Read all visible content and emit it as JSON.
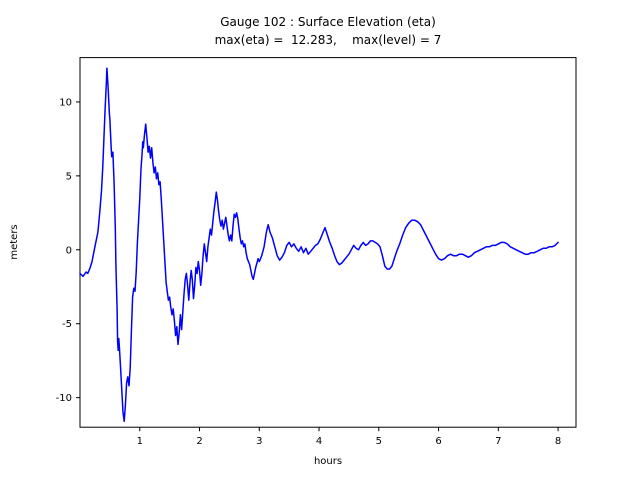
{
  "chart_data": {
    "type": "line",
    "title": "Gauge 102 : Surface Elevation (eta)",
    "subtitle": "max(eta) =  12.283,    max(level) = 7",
    "xlabel": "hours",
    "ylabel": "meters",
    "max_eta": 12.283,
    "max_level": 7,
    "xlim": [
      0,
      8.3
    ],
    "ylim": [
      -12,
      13
    ],
    "xticks": [
      1,
      2,
      3,
      4,
      5,
      6,
      7,
      8
    ],
    "yticks": [
      -10,
      -5,
      0,
      5,
      10
    ],
    "line_color": "#0000ff",
    "axis_color": "#000000",
    "legend": "none",
    "grid": false,
    "series_name": "eta",
    "points": [
      [
        0,
        -1.6
      ],
      [
        0.05,
        -1.8
      ],
      [
        0.1,
        -1.5
      ],
      [
        0.13,
        -1.6
      ],
      [
        0.17,
        -1.2
      ],
      [
        0.2,
        -0.8
      ],
      [
        0.25,
        0.2
      ],
      [
        0.3,
        1.2
      ],
      [
        0.33,
        2.5
      ],
      [
        0.36,
        4
      ],
      [
        0.38,
        5.5
      ],
      [
        0.4,
        7.5
      ],
      [
        0.42,
        9.5
      ],
      [
        0.44,
        11.2
      ],
      [
        0.45,
        12.283
      ],
      [
        0.47,
        11
      ],
      [
        0.49,
        9.3
      ],
      [
        0.5,
        8.8
      ],
      [
        0.52,
        7
      ],
      [
        0.53,
        6.3
      ],
      [
        0.55,
        6.6
      ],
      [
        0.57,
        4.5
      ],
      [
        0.59,
        1.5
      ],
      [
        0.6,
        -1
      ],
      [
        0.62,
        -4
      ],
      [
        0.63,
        -6.2
      ],
      [
        0.64,
        -6.8
      ],
      [
        0.65,
        -6
      ],
      [
        0.66,
        -6.6
      ],
      [
        0.68,
        -8
      ],
      [
        0.7,
        -9.5
      ],
      [
        0.72,
        -11
      ],
      [
        0.74,
        -11.6
      ],
      [
        0.76,
        -10.5
      ],
      [
        0.78,
        -9
      ],
      [
        0.8,
        -8.6
      ],
      [
        0.82,
        -9.2
      ],
      [
        0.84,
        -8
      ],
      [
        0.86,
        -5.5
      ],
      [
        0.88,
        -3.2
      ],
      [
        0.9,
        -2.6
      ],
      [
        0.92,
        -2.8
      ],
      [
        0.94,
        -1.5
      ],
      [
        0.96,
        0.5
      ],
      [
        0.98,
        2
      ],
      [
        1,
        3.5
      ],
      [
        1.02,
        5.5
      ],
      [
        1.04,
        6.5
      ],
      [
        1.05,
        7.3
      ],
      [
        1.06,
        6.9
      ],
      [
        1.08,
        7.8
      ],
      [
        1.1,
        8.5
      ],
      [
        1.12,
        7.6
      ],
      [
        1.14,
        6.6
      ],
      [
        1.16,
        7
      ],
      [
        1.18,
        6.2
      ],
      [
        1.2,
        6.9
      ],
      [
        1.22,
        5.9
      ],
      [
        1.24,
        5.2
      ],
      [
        1.26,
        5.6
      ],
      [
        1.28,
        4.8
      ],
      [
        1.3,
        5.2
      ],
      [
        1.32,
        4.4
      ],
      [
        1.34,
        4.6
      ],
      [
        1.36,
        3.4
      ],
      [
        1.38,
        2
      ],
      [
        1.4,
        0.6
      ],
      [
        1.42,
        -0.8
      ],
      [
        1.44,
        -2.2
      ],
      [
        1.46,
        -2.8
      ],
      [
        1.48,
        -3.4
      ],
      [
        1.5,
        -3.2
      ],
      [
        1.52,
        -3.9
      ],
      [
        1.54,
        -4.4
      ],
      [
        1.56,
        -4
      ],
      [
        1.58,
        -4.8
      ],
      [
        1.6,
        -5.8
      ],
      [
        1.62,
        -5.2
      ],
      [
        1.64,
        -6.4
      ],
      [
        1.66,
        -5.6
      ],
      [
        1.68,
        -4.4
      ],
      [
        1.7,
        -5.4
      ],
      [
        1.72,
        -4.2
      ],
      [
        1.74,
        -3
      ],
      [
        1.76,
        -2
      ],
      [
        1.78,
        -1.6
      ],
      [
        1.8,
        -2.4
      ],
      [
        1.82,
        -3.4
      ],
      [
        1.84,
        -2.2
      ],
      [
        1.86,
        -1.4
      ],
      [
        1.88,
        -2
      ],
      [
        1.9,
        -3.3
      ],
      [
        1.92,
        -2.4
      ],
      [
        1.94,
        -1.2
      ],
      [
        1.96,
        -1.6
      ],
      [
        1.98,
        -0.8
      ],
      [
        2,
        -1.4
      ],
      [
        2.02,
        -2.4
      ],
      [
        2.04,
        -1.6
      ],
      [
        2.06,
        -0.4
      ],
      [
        2.08,
        0.4
      ],
      [
        2.1,
        -0.2
      ],
      [
        2.12,
        -0.8
      ],
      [
        2.14,
        0.2
      ],
      [
        2.16,
        0.8
      ],
      [
        2.18,
        1.4
      ],
      [
        2.2,
        1
      ],
      [
        2.22,
        1.8
      ],
      [
        2.24,
        2.6
      ],
      [
        2.26,
        3.2
      ],
      [
        2.28,
        3.9
      ],
      [
        2.3,
        3.4
      ],
      [
        2.32,
        2.6
      ],
      [
        2.34,
        2
      ],
      [
        2.36,
        1.6
      ],
      [
        2.38,
        2
      ],
      [
        2.4,
        1.4
      ],
      [
        2.42,
        1.8
      ],
      [
        2.44,
        2.2
      ],
      [
        2.46,
        1.6
      ],
      [
        2.48,
        1
      ],
      [
        2.5,
        0.6
      ],
      [
        2.52,
        1
      ],
      [
        2.54,
        0.6
      ],
      [
        2.56,
        1.6
      ],
      [
        2.58,
        2.4
      ],
      [
        2.6,
        2.2
      ],
      [
        2.62,
        2.5
      ],
      [
        2.64,
        2.1
      ],
      [
        2.66,
        1.4
      ],
      [
        2.68,
        0.8
      ],
      [
        2.7,
        0.4
      ],
      [
        2.72,
        0.6
      ],
      [
        2.74,
        0.2
      ],
      [
        2.76,
        0.4
      ],
      [
        2.78,
        -0.2
      ],
      [
        2.8,
        -0.6
      ],
      [
        2.84,
        -1
      ],
      [
        2.88,
        -1.8
      ],
      [
        2.9,
        -2
      ],
      [
        2.94,
        -1.2
      ],
      [
        2.98,
        -0.6
      ],
      [
        3,
        -0.8
      ],
      [
        3.04,
        -0.4
      ],
      [
        3.08,
        0.2
      ],
      [
        3.12,
        1.2
      ],
      [
        3.15,
        1.7
      ],
      [
        3.18,
        1.2
      ],
      [
        3.22,
        0.8
      ],
      [
        3.26,
        0.2
      ],
      [
        3.3,
        -0.4
      ],
      [
        3.34,
        -0.7
      ],
      [
        3.38,
        -0.5
      ],
      [
        3.42,
        -0.2
      ],
      [
        3.46,
        0.3
      ],
      [
        3.5,
        0.5
      ],
      [
        3.54,
        0.2
      ],
      [
        3.58,
        0.4
      ],
      [
        3.62,
        0.1
      ],
      [
        3.66,
        -0.1
      ],
      [
        3.7,
        0.2
      ],
      [
        3.74,
        -0.2
      ],
      [
        3.78,
        0.1
      ],
      [
        3.82,
        -0.3
      ],
      [
        3.86,
        -0.1
      ],
      [
        3.9,
        0.1
      ],
      [
        3.94,
        0.3
      ],
      [
        3.98,
        0.4
      ],
      [
        4.02,
        0.7
      ],
      [
        4.06,
        1.1
      ],
      [
        4.1,
        1.5
      ],
      [
        4.14,
        1
      ],
      [
        4.18,
        0.5
      ],
      [
        4.22,
        0.1
      ],
      [
        4.26,
        -0.4
      ],
      [
        4.3,
        -0.8
      ],
      [
        4.34,
        -1
      ],
      [
        4.38,
        -0.9
      ],
      [
        4.42,
        -0.7
      ],
      [
        4.46,
        -0.5
      ],
      [
        4.5,
        -0.3
      ],
      [
        4.54,
        0
      ],
      [
        4.58,
        0.3
      ],
      [
        4.62,
        0.1
      ],
      [
        4.66,
        0
      ],
      [
        4.7,
        0.3
      ],
      [
        4.74,
        0.5
      ],
      [
        4.78,
        0.3
      ],
      [
        4.82,
        0.4
      ],
      [
        4.86,
        0.6
      ],
      [
        4.9,
        0.6
      ],
      [
        4.94,
        0.5
      ],
      [
        4.98,
        0.4
      ],
      [
        5.02,
        0.2
      ],
      [
        5.06,
        -0.4
      ],
      [
        5.1,
        -1.1
      ],
      [
        5.14,
        -1.3
      ],
      [
        5.18,
        -1.3
      ],
      [
        5.22,
        -1.1
      ],
      [
        5.26,
        -0.6
      ],
      [
        5.3,
        -0.1
      ],
      [
        5.35,
        0.4
      ],
      [
        5.4,
        1
      ],
      [
        5.45,
        1.5
      ],
      [
        5.5,
        1.8
      ],
      [
        5.55,
        2
      ],
      [
        5.6,
        2
      ],
      [
        5.65,
        1.9
      ],
      [
        5.7,
        1.7
      ],
      [
        5.75,
        1.3
      ],
      [
        5.8,
        0.9
      ],
      [
        5.85,
        0.5
      ],
      [
        5.9,
        0.1
      ],
      [
        5.95,
        -0.3
      ],
      [
        6,
        -0.6
      ],
      [
        6.05,
        -0.7
      ],
      [
        6.1,
        -0.6
      ],
      [
        6.15,
        -0.4
      ],
      [
        6.2,
        -0.3
      ],
      [
        6.25,
        -0.4
      ],
      [
        6.3,
        -0.4
      ],
      [
        6.35,
        -0.3
      ],
      [
        6.4,
        -0.3
      ],
      [
        6.45,
        -0.4
      ],
      [
        6.5,
        -0.5
      ],
      [
        6.55,
        -0.4
      ],
      [
        6.6,
        -0.2
      ],
      [
        6.65,
        -0.1
      ],
      [
        6.7,
        0
      ],
      [
        6.75,
        0.1
      ],
      [
        6.8,
        0.2
      ],
      [
        6.85,
        0.2
      ],
      [
        6.9,
        0.3
      ],
      [
        6.95,
        0.3
      ],
      [
        7,
        0.4
      ],
      [
        7.05,
        0.5
      ],
      [
        7.1,
        0.5
      ],
      [
        7.15,
        0.4
      ],
      [
        7.2,
        0.2
      ],
      [
        7.25,
        0.1
      ],
      [
        7.3,
        0
      ],
      [
        7.35,
        -0.1
      ],
      [
        7.4,
        -0.2
      ],
      [
        7.45,
        -0.3
      ],
      [
        7.5,
        -0.3
      ],
      [
        7.55,
        -0.2
      ],
      [
        7.6,
        -0.2
      ],
      [
        7.65,
        -0.1
      ],
      [
        7.7,
        0
      ],
      [
        7.75,
        0.1
      ],
      [
        7.8,
        0.1
      ],
      [
        7.85,
        0.2
      ],
      [
        7.9,
        0.2
      ],
      [
        7.95,
        0.3
      ],
      [
        8,
        0.5
      ]
    ]
  }
}
